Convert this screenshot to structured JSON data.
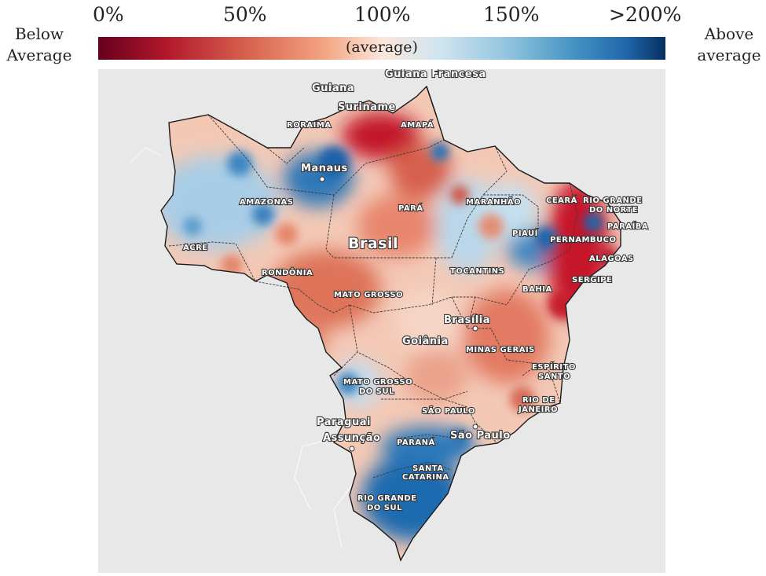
{
  "legend": {
    "left_label_line1": "Below",
    "left_label_line2": "Average",
    "right_label_line1": "Above",
    "right_label_line2": "average",
    "ticks": [
      "0%",
      "50%",
      "100%",
      "150%",
      ">200%"
    ],
    "center_label": "(average)",
    "colors": {
      "min": "#67001f",
      "mid": "#fbe6da",
      "max": "#053061"
    }
  },
  "map": {
    "country": "Brasil",
    "neighbors": [
      "Guiana",
      "Guiana Francesa",
      "Suriname",
      "Paraguai"
    ],
    "cities": [
      "Manaus",
      "Brasília",
      "Goiânia",
      "São Paulo",
      "Assunção"
    ],
    "states": {
      "roraima": "RORAIMA",
      "amapa": "AMAPÁ",
      "amazonas": "AMAZONAS",
      "para": "PARÁ",
      "maranhao": "MARANHÃO",
      "ceara": "CEARÁ",
      "rgn_1": "RIO GRANDE",
      "rgn_2": "DO NORTE",
      "paraiba": "PARAÍBA",
      "pernambuco": "PERNAMBUCO",
      "piaui": "PIAUÍ",
      "alagoas": "ALAGOAS",
      "sergipe": "SERGIPE",
      "acre": "ACRE",
      "rondonia": "RONDÔNIA",
      "tocantins": "TOCANTINS",
      "bahia": "BAHIA",
      "mato_grosso": "MATO GROSSO",
      "ms_1": "MATO GROSSO",
      "ms_2": "DO SUL",
      "minas": "MINAS GERAIS",
      "es_1": "ESPÍRITO",
      "es_2": "SANTO",
      "rj_1": "RIO DE",
      "rj_2": "JANEIRO",
      "sp": "SÃO PAULO",
      "parana": "PARANÁ",
      "sc_1": "SANTA",
      "sc_2": "CATARINA",
      "rs_1": "RIO GRANDE",
      "rs_2": "DO SUL"
    }
  }
}
